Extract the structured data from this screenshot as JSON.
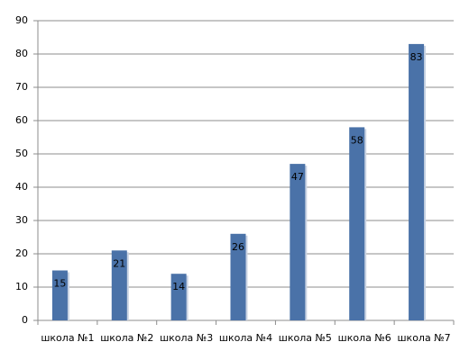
{
  "chart_data": {
    "type": "bar",
    "categories": [
      "школа №1",
      "школа №2",
      "школа №3",
      "школа №4",
      "школа №5",
      "школа №6",
      "школа №7"
    ],
    "values": [
      15,
      21,
      14,
      26,
      47,
      58,
      83
    ],
    "color": "#4a72a8",
    "ylim": [
      0,
      90
    ],
    "yticks": [
      0,
      10,
      20,
      30,
      40,
      50,
      60,
      70,
      80,
      90
    ],
    "grid": true
  }
}
